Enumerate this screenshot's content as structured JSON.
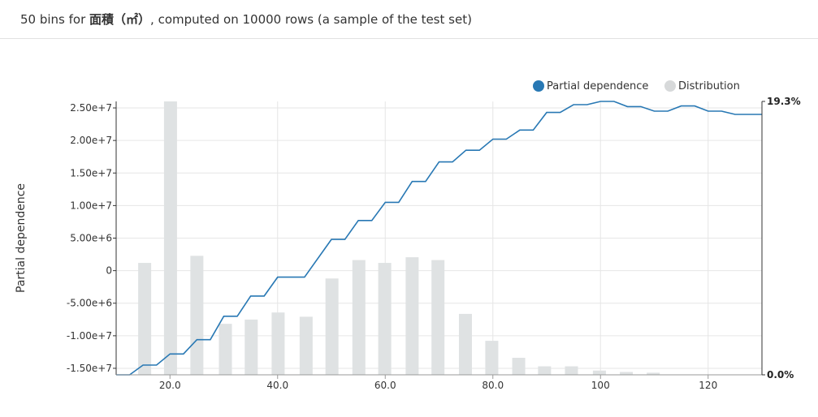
{
  "header": {
    "prefix": "50 bins for ",
    "feature": "面積（㎡）",
    "suffix": ", computed on 10000 rows (a sample of the test set)"
  },
  "colors": {
    "pd_line": "#2878b4",
    "dist_bar": "#dfe2e3",
    "grid": "#e6e6e6",
    "axis": "#333333"
  },
  "chart_data": {
    "type": "line",
    "ylabel": "Partial dependence",
    "legend": [
      {
        "name": "Partial dependence",
        "color": "#2878b4",
        "marker": "circle"
      },
      {
        "name": "Distribution",
        "color": "#d7d9da",
        "marker": "circle"
      }
    ],
    "legend_position": "top-right",
    "grid": true,
    "xlim": [
      10,
      130
    ],
    "x_ticks": [
      20,
      40,
      60,
      80,
      100,
      120
    ],
    "x_tick_labels": [
      "20.0",
      "40.0",
      "60.0",
      "80.0",
      "100",
      "120"
    ],
    "ylim": [
      -16000000,
      26000000
    ],
    "y_ticks": [
      -15000000,
      -10000000,
      -5000000,
      0,
      5000000,
      10000000,
      15000000,
      20000000,
      25000000
    ],
    "y_tick_labels": [
      "-1.50e+7",
      "-1.00e+7",
      "-5.00e+6",
      "0",
      "5.00e+6",
      "1.00e+7",
      "1.50e+7",
      "2.00e+7",
      "2.50e+7"
    ],
    "y2_ticks": [
      {
        "label": "19.3%",
        "value": 19.3
      },
      {
        "label": "0.0%",
        "value": 0
      }
    ],
    "series": [
      {
        "name": "Partial dependence",
        "points": [
          [
            10,
            -16000000
          ],
          [
            12.5,
            -16000000
          ],
          [
            15,
            -14500000
          ],
          [
            17.5,
            -14500000
          ],
          [
            20,
            -12800000
          ],
          [
            22.5,
            -12800000
          ],
          [
            25,
            -10600000
          ],
          [
            27.5,
            -10600000
          ],
          [
            30,
            -7000000
          ],
          [
            32.5,
            -7000000
          ],
          [
            35,
            -3900000
          ],
          [
            37.5,
            -3900000
          ],
          [
            40,
            -1000000
          ],
          [
            45,
            -1000000
          ],
          [
            50,
            4800000
          ],
          [
            52.5,
            4800000
          ],
          [
            55,
            7700000
          ],
          [
            57.5,
            7700000
          ],
          [
            60,
            10500000
          ],
          [
            62.5,
            10500000
          ],
          [
            65,
            13700000
          ],
          [
            67.5,
            13700000
          ],
          [
            70,
            16700000
          ],
          [
            72.5,
            16700000
          ],
          [
            75,
            18500000
          ],
          [
            77.5,
            18500000
          ],
          [
            80,
            20200000
          ],
          [
            82.5,
            20200000
          ],
          [
            85,
            21600000
          ],
          [
            87.5,
            21600000
          ],
          [
            90,
            24300000
          ],
          [
            92.5,
            24300000
          ],
          [
            95,
            25500000
          ],
          [
            97.5,
            25500000
          ],
          [
            100,
            26000000
          ],
          [
            102.5,
            26000000
          ],
          [
            105,
            25200000
          ],
          [
            107.5,
            25200000
          ],
          [
            110,
            24500000
          ],
          [
            112.5,
            24500000
          ],
          [
            115,
            25300000
          ],
          [
            117.5,
            25300000
          ],
          [
            120,
            24500000
          ],
          [
            122.5,
            24500000
          ],
          [
            125,
            24000000
          ],
          [
            130,
            24000000
          ]
        ]
      },
      {
        "name": "Distribution",
        "axis": "right",
        "unit": "%",
        "bars": [
          {
            "x": 15.3,
            "value": 7.9
          },
          {
            "x": 20.1,
            "value": 19.3
          },
          {
            "x": 25.0,
            "value": 8.4
          },
          {
            "x": 30.3,
            "value": 3.6
          },
          {
            "x": 35.1,
            "value": 3.9
          },
          {
            "x": 40.1,
            "value": 4.4
          },
          {
            "x": 45.3,
            "value": 4.1
          },
          {
            "x": 50.1,
            "value": 6.8
          },
          {
            "x": 55.1,
            "value": 8.1
          },
          {
            "x": 59.9,
            "value": 7.9
          },
          {
            "x": 65.0,
            "value": 8.3
          },
          {
            "x": 69.8,
            "value": 8.1
          },
          {
            "x": 74.9,
            "value": 4.3
          },
          {
            "x": 79.8,
            "value": 2.4
          },
          {
            "x": 84.8,
            "value": 1.2
          },
          {
            "x": 89.6,
            "value": 0.6
          },
          {
            "x": 94.6,
            "value": 0.6
          },
          {
            "x": 99.8,
            "value": 0.3
          },
          {
            "x": 104.8,
            "value": 0.2
          },
          {
            "x": 109.8,
            "value": 0.15
          }
        ]
      }
    ]
  }
}
